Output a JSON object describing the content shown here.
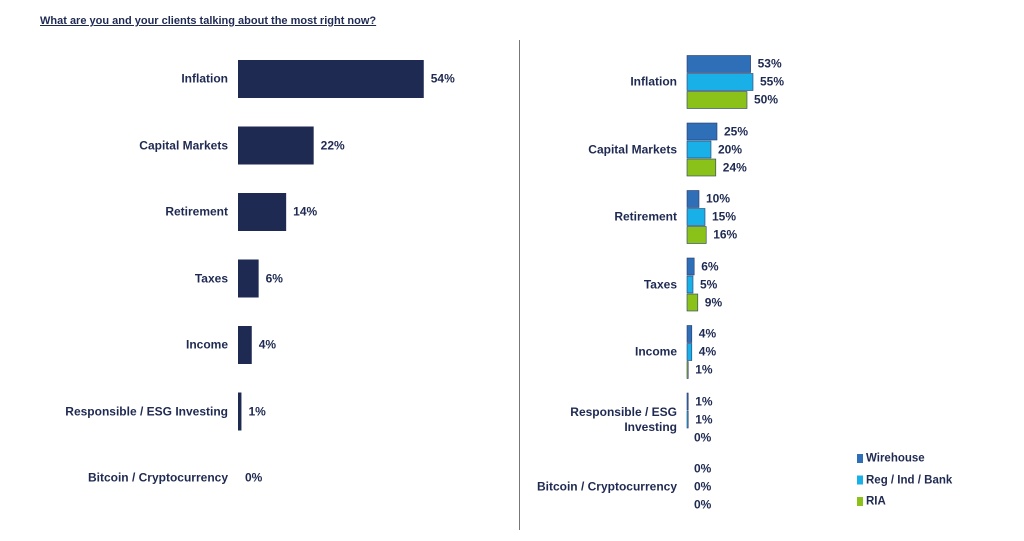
{
  "chart_data": [
    {
      "type": "hbar",
      "title": "What are you and your clients talking about the most right now?",
      "categories": [
        "Inflation",
        "Capital Markets",
        "Retirement",
        "Taxes",
        "Income",
        "Responsible / ESG Investing",
        "Bitcoin / Cryptocurrency"
      ],
      "values": [
        54,
        22,
        14,
        6,
        4,
        1,
        0
      ],
      "value_labels": [
        "54%",
        "22%",
        "14%",
        "6%",
        "4%",
        "1%",
        "0%"
      ],
      "color": "#1f2a52"
    },
    {
      "type": "grouped-hbar",
      "categories": [
        "Inflation",
        "Capital Markets",
        "Retirement",
        "Taxes",
        "Income",
        "Responsible / ESG Investing",
        "Bitcoin / Cryptocurrency"
      ],
      "series": [
        {
          "name": "Wirehouse",
          "color": "#2e6fb7",
          "values": [
            53,
            25,
            10,
            6,
            4,
            1,
            0
          ],
          "value_labels": [
            "53%",
            "25%",
            "10%",
            "6%",
            "4%",
            "1%",
            "0%"
          ]
        },
        {
          "name": "Reg / Ind / Bank",
          "color": "#19b0e8",
          "values": [
            55,
            20,
            15,
            5,
            4,
            1,
            0
          ],
          "value_labels": [
            "55%",
            "20%",
            "15%",
            "5%",
            "4%",
            "1%",
            "0%"
          ]
        },
        {
          "name": "RIA",
          "color": "#8ac21a",
          "values": [
            50,
            24,
            16,
            9,
            1,
            0,
            0
          ],
          "value_labels": [
            "50%",
            "24%",
            "16%",
            "9%",
            "1%",
            "0%",
            "0%"
          ]
        }
      ],
      "legend": "bottom-right"
    }
  ]
}
